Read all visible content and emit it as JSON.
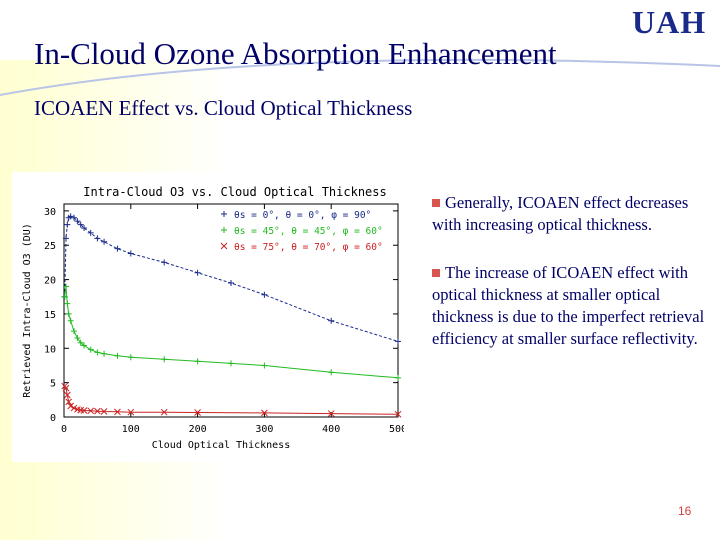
{
  "slide": {
    "logo": "UAH",
    "title": "In-Cloud Ozone Absorption Enhancement",
    "subtitle": "ICOAEN Effect vs. Cloud Optical Thickness",
    "bullets": [
      "Generally, ICOAEN effect decreases with increasing optical thickness.",
      "The increase of ICOAEN effect with optical thickness at smaller optical thickness is due to the imperfect retrieval efficiency at smaller surface reflectivity."
    ],
    "page_number": "16",
    "colors": {
      "title": "#000066",
      "bullet_marker": "#d9534f",
      "page_number": "#d04040"
    }
  },
  "chart_data": {
    "type": "line",
    "title": "Intra-Cloud O3 vs. Cloud Optical Thickness",
    "xlabel": "Cloud Optical Thickness",
    "ylabel": "Retrieved Intra-Cloud O3 (DU)",
    "xlim": [
      0,
      500
    ],
    "ylim": [
      0,
      31
    ],
    "xticks": [
      0,
      100,
      200,
      300,
      400,
      500
    ],
    "yticks": [
      0,
      5,
      10,
      15,
      20,
      25,
      30
    ],
    "legend_placement": "top-right",
    "series": [
      {
        "name": "θs = 0°, θ = 0°, φ = 90°",
        "color": "#1a2a8a",
        "marker": "+",
        "x": [
          1,
          3,
          5,
          7,
          10,
          15,
          20,
          25,
          30,
          40,
          50,
          60,
          80,
          100,
          150,
          200,
          250,
          300,
          400,
          500
        ],
        "y": [
          17.5,
          26,
          28,
          29,
          29.2,
          29,
          28.5,
          28,
          27.5,
          26.8,
          26,
          25.5,
          24.5,
          23.8,
          22.5,
          21,
          19.5,
          17.8,
          14,
          11
        ]
      },
      {
        "name": "θs = 45°, θ = 45°, φ = 60°",
        "color": "#22bb22",
        "marker": "+",
        "x": [
          1,
          3,
          5,
          7,
          10,
          15,
          20,
          25,
          30,
          40,
          50,
          60,
          80,
          100,
          150,
          200,
          250,
          300,
          400,
          500
        ],
        "y": [
          17.5,
          19,
          16.5,
          15,
          14,
          12.5,
          11.5,
          10.8,
          10.4,
          9.8,
          9.4,
          9.2,
          8.9,
          8.7,
          8.4,
          8.1,
          7.8,
          7.5,
          6.5,
          5.7
        ]
      },
      {
        "name": "θs = 75°, θ = 70°, φ = 60°",
        "color": "#cc2222",
        "marker": "x",
        "x": [
          1,
          3,
          5,
          7,
          10,
          15,
          20,
          25,
          30,
          40,
          50,
          60,
          80,
          100,
          150,
          200,
          300,
          400,
          500
        ],
        "y": [
          4.5,
          4.2,
          3.2,
          2.2,
          1.6,
          1.3,
          1.1,
          1.0,
          0.95,
          0.9,
          0.85,
          0.8,
          0.75,
          0.7,
          0.7,
          0.65,
          0.6,
          0.5,
          0.4
        ]
      }
    ]
  }
}
